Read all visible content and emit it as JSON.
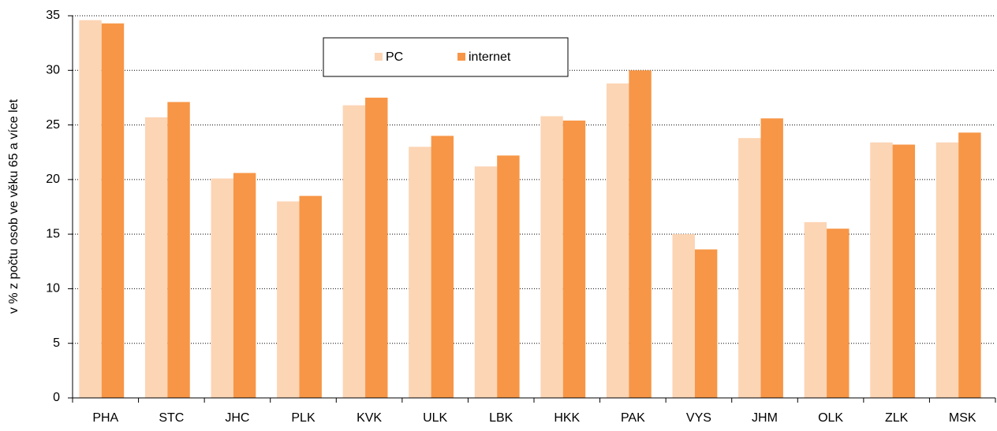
{
  "chart_data": {
    "type": "bar",
    "y_label": "v % z počtu osob ve věku 65 a více let",
    "categories": [
      "PHA",
      "STC",
      "JHC",
      "PLK",
      "KVK",
      "ULK",
      "LBK",
      "HKK",
      "PAK",
      "VYS",
      "JHM",
      "OLK",
      "ZLK",
      "MSK"
    ],
    "series": [
      {
        "name": "PC",
        "color": "#fcd5b5",
        "values": [
          34.6,
          25.7,
          20.1,
          18.0,
          26.8,
          23.0,
          21.2,
          25.8,
          28.8,
          15.0,
          23.8,
          16.1,
          23.4,
          23.4
        ]
      },
      {
        "name": "internet",
        "color": "#f79646",
        "values": [
          34.3,
          27.1,
          20.6,
          18.5,
          27.5,
          24.0,
          22.2,
          25.4,
          30.0,
          13.6,
          25.6,
          15.5,
          23.2,
          24.3
        ]
      }
    ],
    "ylim": [
      0,
      35
    ],
    "yticks": [
      0,
      5,
      10,
      15,
      20,
      25,
      30,
      35
    ],
    "grid": true,
    "legend": "top"
  }
}
